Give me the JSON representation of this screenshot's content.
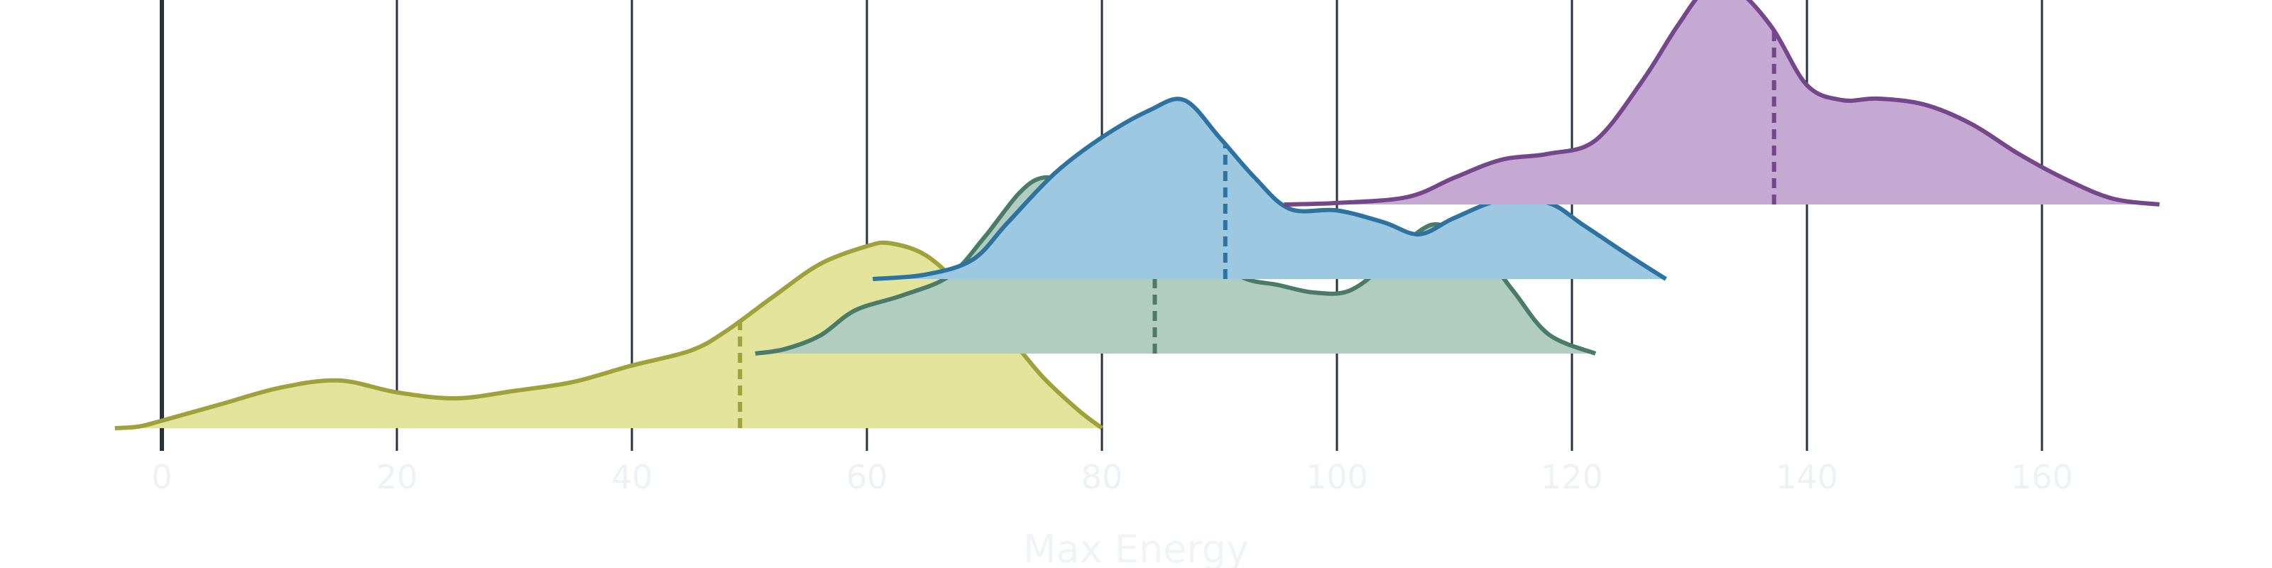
{
  "chart_data": {
    "type": "ridgeline",
    "xlabel": "Max Energy",
    "xlim": [
      -5,
      172
    ],
    "ticks": [
      0,
      20,
      40,
      60,
      80,
      100,
      120,
      140,
      160
    ],
    "tick_labels": [
      "0",
      "20",
      "40",
      "60",
      "80",
      "100",
      "120",
      "140",
      "160"
    ],
    "grid": true,
    "series": [
      {
        "key": "olive",
        "fill": "#e2e49b",
        "stroke": "#9fa23a",
        "baseline_level": 0,
        "peak_height": 1.0,
        "range": [
          -4,
          80
        ],
        "median": 49.2,
        "curve": [
          [
            -4,
            0.0
          ],
          [
            -2,
            0.01
          ],
          [
            0,
            0.05
          ],
          [
            5,
            0.16
          ],
          [
            10,
            0.27
          ],
          [
            15,
            0.32
          ],
          [
            20,
            0.24
          ],
          [
            25,
            0.2
          ],
          [
            30,
            0.25
          ],
          [
            35,
            0.31
          ],
          [
            40,
            0.42
          ],
          [
            45,
            0.52
          ],
          [
            48,
            0.65
          ],
          [
            52,
            0.88
          ],
          [
            56,
            1.1
          ],
          [
            60,
            1.22
          ],
          [
            62,
            1.24
          ],
          [
            65,
            1.16
          ],
          [
            68,
            0.95
          ],
          [
            72,
            0.62
          ],
          [
            75,
            0.34
          ],
          [
            78,
            0.12
          ],
          [
            80,
            0.0
          ]
        ]
      },
      {
        "key": "green",
        "fill": "#b1cdbf",
        "stroke": "#4a7a68",
        "baseline_level": 1,
        "peak_height": 1.0,
        "range": [
          50.5,
          122
        ],
        "median": 84.5,
        "curve": [
          [
            50.5,
            0.0
          ],
          [
            53,
            0.03
          ],
          [
            56,
            0.12
          ],
          [
            59,
            0.29
          ],
          [
            63,
            0.39
          ],
          [
            67,
            0.52
          ],
          [
            70,
            0.78
          ],
          [
            73,
            1.08
          ],
          [
            75,
            1.18
          ],
          [
            77,
            1.13
          ],
          [
            80,
            0.93
          ],
          [
            83,
            0.84
          ],
          [
            86,
            0.83
          ],
          [
            89,
            0.68
          ],
          [
            92,
            0.51
          ],
          [
            95,
            0.46
          ],
          [
            98,
            0.41
          ],
          [
            101,
            0.42
          ],
          [
            104,
            0.59
          ],
          [
            107,
            0.82
          ],
          [
            109,
            0.86
          ],
          [
            112,
            0.72
          ],
          [
            115,
            0.42
          ],
          [
            118,
            0.13
          ],
          [
            122,
            0.0
          ]
        ]
      },
      {
        "key": "blue",
        "fill": "#9dc8e1",
        "stroke": "#2e73a0",
        "baseline_level": 2,
        "peak_height": 1.0,
        "range": [
          60.5,
          128
        ],
        "median": 90.5,
        "curve": [
          [
            60.5,
            0.0
          ],
          [
            65,
            0.03
          ],
          [
            69,
            0.13
          ],
          [
            72,
            0.38
          ],
          [
            76,
            0.71
          ],
          [
            80,
            0.95
          ],
          [
            84,
            1.13
          ],
          [
            87,
            1.2
          ],
          [
            90,
            0.95
          ],
          [
            93,
            0.68
          ],
          [
            96,
            0.47
          ],
          [
            100,
            0.46
          ],
          [
            104,
            0.38
          ],
          [
            107,
            0.3
          ],
          [
            110,
            0.41
          ],
          [
            114,
            0.53
          ],
          [
            118,
            0.51
          ],
          [
            121,
            0.36
          ],
          [
            125,
            0.15
          ],
          [
            128,
            0.0
          ]
        ]
      },
      {
        "key": "purple",
        "fill": "#c6a9d2",
        "stroke": "#74468a",
        "baseline_level": 3,
        "peak_height": 1.0,
        "range": [
          95.5,
          170
        ],
        "median": 137.2,
        "curve": [
          [
            95.5,
            0.0
          ],
          [
            100,
            0.01
          ],
          [
            106,
            0.05
          ],
          [
            110,
            0.18
          ],
          [
            114,
            0.3
          ],
          [
            118,
            0.34
          ],
          [
            122,
            0.43
          ],
          [
            126,
            0.83
          ],
          [
            129,
            1.2
          ],
          [
            131.5,
            1.45
          ],
          [
            134,
            1.44
          ],
          [
            137,
            1.19
          ],
          [
            140,
            0.8
          ],
          [
            143,
            0.7
          ],
          [
            146,
            0.71
          ],
          [
            150,
            0.67
          ],
          [
            154,
            0.54
          ],
          [
            158,
            0.34
          ],
          [
            162,
            0.17
          ],
          [
            166,
            0.04
          ],
          [
            170,
            0.0
          ]
        ]
      }
    ]
  }
}
